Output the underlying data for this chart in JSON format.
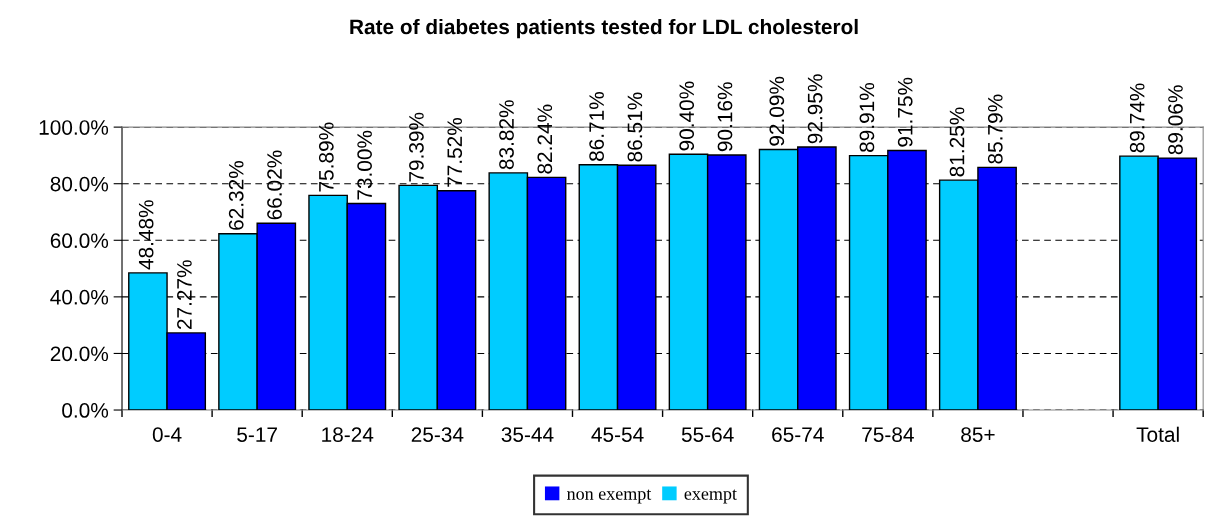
{
  "chart_data": {
    "type": "bar",
    "title": "Rate of diabetes patients tested for LDL cholesterol",
    "categories": [
      "0-4",
      "5-17",
      "18-24",
      "25-34",
      "35-44",
      "45-54",
      "55-64",
      "65-74",
      "75-84",
      "85+",
      null,
      "Total"
    ],
    "series": [
      {
        "name": "exempt",
        "color": "#00ccff",
        "values": [
          48.48,
          62.32,
          75.89,
          79.39,
          83.82,
          86.71,
          90.4,
          92.09,
          89.91,
          81.25,
          null,
          89.74
        ],
        "value_labels": [
          "48.48%",
          "62.32%",
          "75.89%",
          "79.39%",
          "83.82%",
          "86.71%",
          "90.40%",
          "92.09%",
          "89.91%",
          "81.25%",
          null,
          "89.74%"
        ]
      },
      {
        "name": "non exempt",
        "color": "#0000ff",
        "values": [
          27.27,
          66.02,
          73.0,
          77.52,
          82.24,
          86.51,
          90.16,
          92.95,
          91.75,
          85.79,
          null,
          89.06
        ],
        "value_labels": [
          "27.27%",
          "66.02%",
          "73.00%",
          "77.52%",
          "82.24%",
          "86.51%",
          "90.16%",
          "92.95%",
          "91.75%",
          "85.79%",
          null,
          "89.06%"
        ]
      }
    ],
    "ylim": [
      0,
      100
    ],
    "yticks": [
      {
        "value": 0,
        "label": "0.0%"
      },
      {
        "value": 20,
        "label": "20.0%"
      },
      {
        "value": 40,
        "label": "40.0%"
      },
      {
        "value": 60,
        "label": "60.0%"
      },
      {
        "value": 80,
        "label": "80.0%"
      },
      {
        "value": 100,
        "label": "100.0%"
      }
    ],
    "grid": "y",
    "legend": "bottom"
  }
}
